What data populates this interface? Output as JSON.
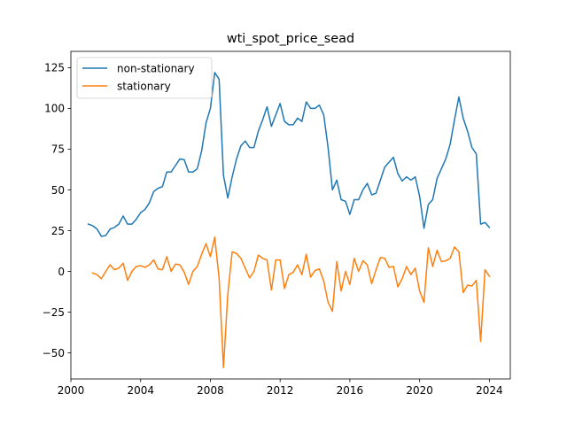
{
  "chart_data": {
    "type": "line",
    "title": "wti_spot_price_sead",
    "xlabel": "",
    "ylabel": "",
    "xlim": [
      2000.0,
      2025.2
    ],
    "ylim": [
      -66,
      135
    ],
    "x_ticks": [
      2000,
      2004,
      2008,
      2012,
      2016,
      2020,
      2024
    ],
    "x_tick_labels": [
      "2000",
      "2004",
      "2008",
      "2012",
      "2016",
      "2020",
      "2024"
    ],
    "y_ticks": [
      -50,
      -25,
      0,
      25,
      50,
      75,
      100,
      125
    ],
    "y_tick_labels": [
      "−50",
      "−25",
      "0",
      "25",
      "50",
      "75",
      "100",
      "125"
    ],
    "grid": false,
    "legend_position": "upper-left",
    "series": [
      {
        "name": "non-stationary",
        "color": "#1f77b4",
        "x": [
          2001.0,
          2001.25,
          2001.5,
          2001.75,
          2002.0,
          2002.25,
          2002.5,
          2002.75,
          2003.0,
          2003.25,
          2003.5,
          2003.75,
          2004.0,
          2004.25,
          2004.5,
          2004.75,
          2005.0,
          2005.25,
          2005.5,
          2005.75,
          2006.0,
          2006.25,
          2006.5,
          2006.75,
          2007.0,
          2007.25,
          2007.5,
          2007.75,
          2008.0,
          2008.25,
          2008.5,
          2008.75,
          2009.0,
          2009.25,
          2009.5,
          2009.75,
          2010.0,
          2010.25,
          2010.5,
          2010.75,
          2011.0,
          2011.25,
          2011.5,
          2011.75,
          2012.0,
          2012.25,
          2012.5,
          2012.75,
          2013.0,
          2013.25,
          2013.5,
          2013.75,
          2014.0,
          2014.25,
          2014.5,
          2014.75,
          2015.0,
          2015.25,
          2015.5,
          2015.75,
          2016.0,
          2016.25,
          2016.5,
          2016.75,
          2017.0,
          2017.25,
          2017.5,
          2017.75,
          2018.0,
          2018.25,
          2018.5,
          2018.75,
          2019.0,
          2019.25,
          2019.5,
          2019.75,
          2020.0,
          2020.25,
          2020.5,
          2020.75,
          2021.0,
          2021.25,
          2021.5,
          2021.75,
          2022.0,
          2022.25,
          2022.5,
          2022.75,
          2023.0,
          2023.25,
          2023.5,
          2023.75,
          2024.0
        ],
        "values": [
          29,
          28,
          26,
          21.5,
          22,
          26,
          27,
          29,
          34,
          29,
          29,
          32,
          36,
          38,
          42,
          49,
          51,
          52,
          61,
          61,
          65,
          69,
          68.5,
          61,
          61,
          63,
          74,
          91,
          100,
          122,
          118,
          59,
          45,
          58,
          69,
          77,
          80,
          76,
          76,
          86,
          93,
          101,
          89,
          96,
          103,
          92,
          90,
          90,
          94,
          92,
          104,
          100,
          100,
          102,
          96,
          76,
          50,
          56,
          44,
          43,
          35,
          44,
          44,
          50,
          54,
          47,
          48,
          56,
          64,
          67,
          70,
          60,
          55.5,
          58,
          56,
          58,
          46,
          26.5,
          41,
          44,
          57,
          63,
          69,
          78,
          93,
          107,
          94,
          86,
          76,
          72,
          29,
          30,
          27
        ]
      },
      {
        "name": "stationary",
        "color": "#ff7f0e",
        "x": [
          2001.25,
          2001.5,
          2001.75,
          2002.0,
          2002.25,
          2002.5,
          2002.75,
          2003.0,
          2003.25,
          2003.5,
          2003.75,
          2004.0,
          2004.25,
          2004.5,
          2004.75,
          2005.0,
          2005.25,
          2005.5,
          2005.75,
          2006.0,
          2006.25,
          2006.5,
          2006.75,
          2007.0,
          2007.25,
          2007.5,
          2007.75,
          2008.0,
          2008.25,
          2008.5,
          2008.75,
          2009.0,
          2009.25,
          2009.5,
          2009.75,
          2010.0,
          2010.25,
          2010.5,
          2010.75,
          2011.0,
          2011.25,
          2011.5,
          2011.75,
          2012.0,
          2012.25,
          2012.5,
          2012.75,
          2013.0,
          2013.25,
          2013.5,
          2013.75,
          2014.0,
          2014.25,
          2014.5,
          2014.75,
          2015.0,
          2015.25,
          2015.5,
          2015.75,
          2016.0,
          2016.25,
          2016.5,
          2016.75,
          2017.0,
          2017.25,
          2017.5,
          2017.75,
          2018.0,
          2018.25,
          2018.5,
          2018.75,
          2019.0,
          2019.25,
          2019.5,
          2019.75,
          2020.0,
          2020.25,
          2020.5,
          2020.75,
          2021.0,
          2021.25,
          2021.5,
          2021.75,
          2022.0,
          2022.25,
          2022.5,
          2022.75,
          2023.0,
          2023.25,
          2023.5,
          2023.75,
          2024.0
        ],
        "values": [
          -1,
          -2,
          -4.5,
          0,
          4,
          1,
          2,
          5,
          -5.5,
          0,
          3,
          3.5,
          2.5,
          4,
          7,
          1.5,
          1,
          9,
          0,
          4.5,
          4,
          -0.5,
          -8,
          0,
          3,
          10.5,
          17,
          9,
          21,
          -4,
          -59,
          -14,
          12,
          11,
          8,
          2,
          -4,
          0,
          10,
          8,
          7,
          -11.5,
          7,
          7,
          -10.5,
          -2,
          -0.5,
          4,
          -2,
          10.5,
          -3.5,
          0.5,
          1.5,
          -6,
          -19,
          -24.5,
          6,
          -12,
          0,
          -8,
          8,
          0,
          6.5,
          4,
          -7.5,
          1,
          8.5,
          8,
          2.5,
          3,
          -9.5,
          -4.5,
          3,
          -2,
          2,
          -12,
          -19,
          14.5,
          3,
          13,
          6,
          6.5,
          8,
          15,
          12,
          -13,
          -8.5,
          -9,
          -5.5,
          -43,
          1,
          -3
        ]
      }
    ]
  }
}
